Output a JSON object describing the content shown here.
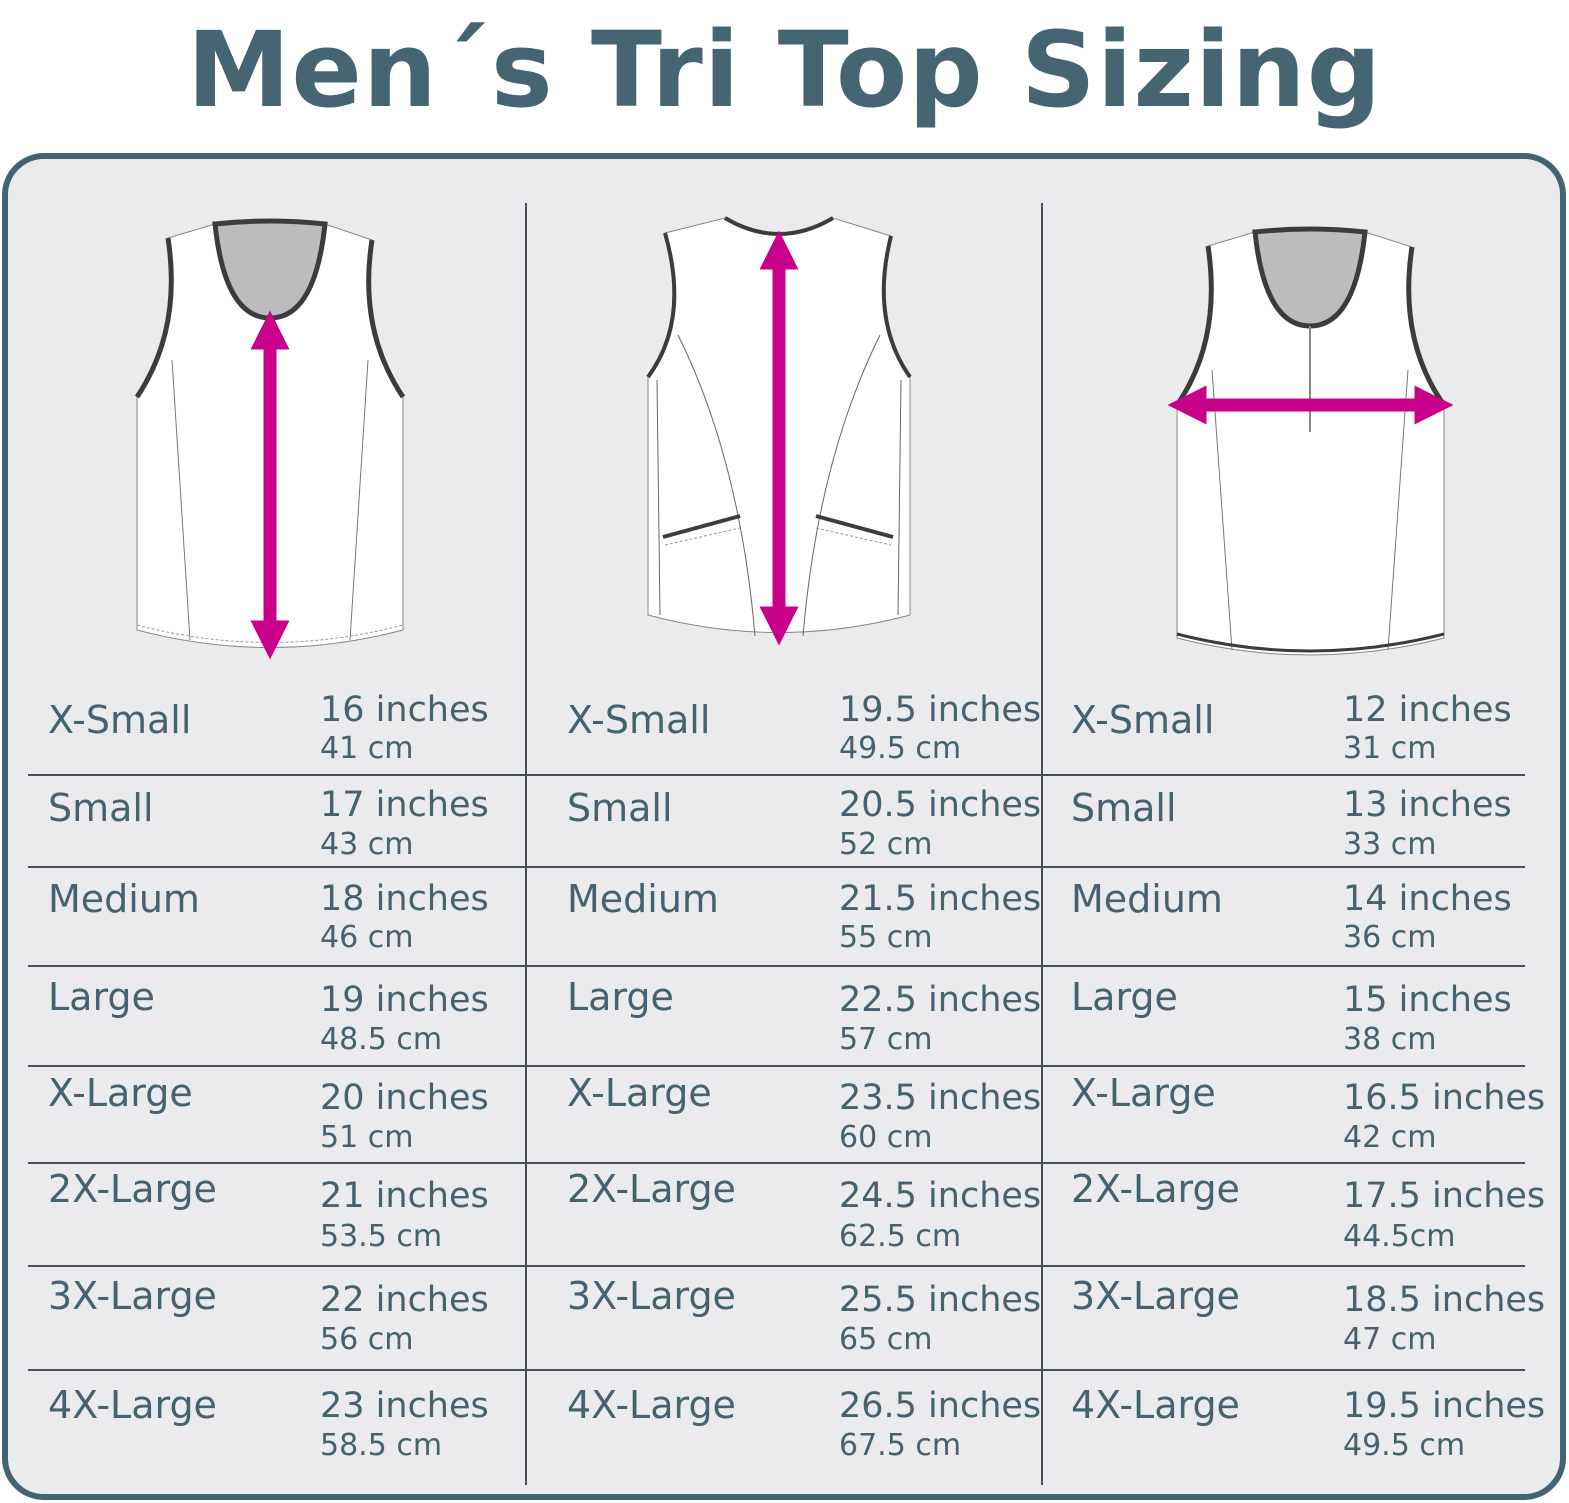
{
  "title": "Men´s Tri Top Sizing",
  "colors": {
    "title": "#456572",
    "border": "#42636f",
    "background": "#ebebed",
    "arrow": "#c8008a",
    "text": "#46626e"
  },
  "columns": [
    {
      "illustration": "vest-front-length-arrow",
      "rows": [
        {
          "size": "X-Small",
          "inches": "16 inches",
          "cm": "41 cm"
        },
        {
          "size": "Small",
          "inches": "17 inches",
          "cm": "43 cm"
        },
        {
          "size": "Medium",
          "inches": "18 inches",
          "cm": "46 cm"
        },
        {
          "size": "Large",
          "inches": "19 inches",
          "cm": "48.5 cm"
        },
        {
          "size": "X-Large",
          "inches": "20 inches",
          "cm": "51 cm"
        },
        {
          "size": "2X-Large",
          "inches": "21 inches",
          "cm": "53.5 cm"
        },
        {
          "size": "3X-Large",
          "inches": "22 inches",
          "cm": "56 cm"
        },
        {
          "size": "4X-Large",
          "inches": "23 inches",
          "cm": "58.5 cm"
        }
      ]
    },
    {
      "illustration": "vest-back-length-arrow",
      "rows": [
        {
          "size": "X-Small",
          "inches": "19.5 inches",
          "cm": "49.5 cm"
        },
        {
          "size": "Small",
          "inches": "20.5 inches",
          "cm": "52 cm"
        },
        {
          "size": "Medium",
          "inches": "21.5 inches",
          "cm": "55 cm"
        },
        {
          "size": "Large",
          "inches": "22.5 inches",
          "cm": "57 cm"
        },
        {
          "size": "X-Large",
          "inches": "23.5 inches",
          "cm": "60 cm"
        },
        {
          "size": "2X-Large",
          "inches": "24.5 inches",
          "cm": "62.5 cm"
        },
        {
          "size": "3X-Large",
          "inches": "25.5 inches",
          "cm": "65 cm"
        },
        {
          "size": "4X-Large",
          "inches": "26.5 inches",
          "cm": "67.5 cm"
        }
      ]
    },
    {
      "illustration": "vest-front-chest-width-arrow",
      "rows": [
        {
          "size": "X-Small",
          "inches": "12 inches",
          "cm": "31 cm"
        },
        {
          "size": "Small",
          "inches": "13 inches",
          "cm": "33 cm"
        },
        {
          "size": "Medium",
          "inches": "14 inches",
          "cm": "36 cm"
        },
        {
          "size": "Large",
          "inches": "15 inches",
          "cm": "38 cm"
        },
        {
          "size": "X-Large",
          "inches": "16.5 inches",
          "cm": "42 cm"
        },
        {
          "size": "2X-Large",
          "inches": "17.5 inches",
          "cm": "44.5cm"
        },
        {
          "size": "3X-Large",
          "inches": "18.5 inches",
          "cm": "47 cm"
        },
        {
          "size": "4X-Large",
          "inches": "19.5 inches",
          "cm": "49.5 cm"
        }
      ]
    }
  ]
}
